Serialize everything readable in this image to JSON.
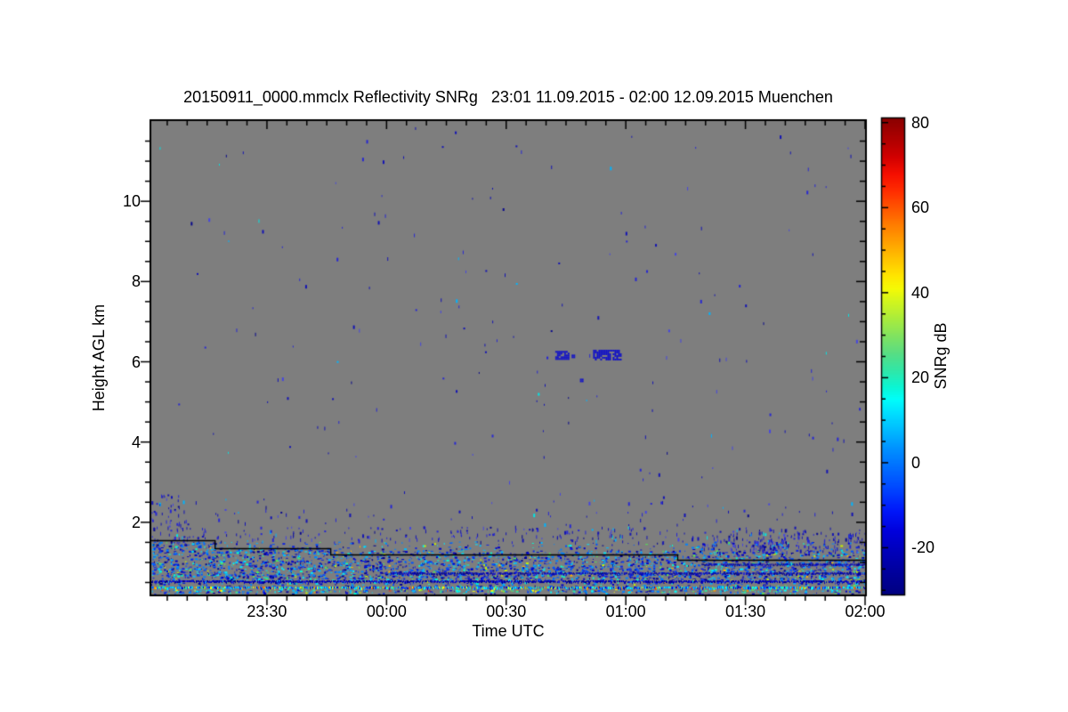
{
  "chart_data": {
    "type": "heatmap",
    "title": "20150911_0000.mmclx Reflectivity SNRg   23:01 11.09.2015 - 02:00 12.09.2015 Muenchen",
    "station": "Muenchen",
    "file": "20150911_0000.mmclx",
    "quantity": "Reflectivity SNRg",
    "time_span": "23:01 11.09.2015 - 02:00 12.09.2015",
    "xlabel": "Time UTC",
    "ylabel": "Height AGL km",
    "colorbar_label": "SNRg dB",
    "x_axis": {
      "start_label": "23:01",
      "end_label": "02:00",
      "duration_min": 179,
      "major_ticks": [
        {
          "label": "23:30",
          "min": 29
        },
        {
          "label": "00:00",
          "min": 59
        },
        {
          "label": "00:30",
          "min": 89
        },
        {
          "label": "01:00",
          "min": 119
        },
        {
          "label": "01:30",
          "min": 149
        },
        {
          "label": "02:00",
          "min": 179
        }
      ],
      "minor_step_min": 5,
      "first_minor_min": 4
    },
    "y_axis": {
      "min_km": 0.2,
      "max_km": 12.0,
      "major_ticks": [
        2,
        4,
        6,
        8,
        10
      ],
      "minor_step_km": 0.5
    },
    "colorbar": {
      "min": -31,
      "max": 81,
      "major_ticks": [
        -20,
        0,
        20,
        40,
        60,
        80
      ],
      "minor_step": 5,
      "stops": [
        [
          -31,
          "#000080"
        ],
        [
          -26,
          "#00009b"
        ],
        [
          -21,
          "#0000b9"
        ],
        [
          -16,
          "#0000dc"
        ],
        [
          -11,
          "#0019fa"
        ],
        [
          -6,
          "#0046ff"
        ],
        [
          -1,
          "#006eff"
        ],
        [
          4,
          "#0096ff"
        ],
        [
          8,
          "#00bdff"
        ],
        [
          12,
          "#00e1ff"
        ],
        [
          15,
          "#00fffa"
        ],
        [
          18,
          "#0cf5d2"
        ],
        [
          22,
          "#32e6a5"
        ],
        [
          26,
          "#5add82"
        ],
        [
          30,
          "#82e35f"
        ],
        [
          34,
          "#aaec3c"
        ],
        [
          38,
          "#d2f51e"
        ],
        [
          41,
          "#f5fa05"
        ],
        [
          44,
          "#ffe600"
        ],
        [
          48,
          "#ffc300"
        ],
        [
          52,
          "#ffa000"
        ],
        [
          56,
          "#ff7d00"
        ],
        [
          60,
          "#ff5500"
        ],
        [
          64,
          "#ff2d00"
        ],
        [
          68,
          "#f50f00"
        ],
        [
          72,
          "#d20000"
        ],
        [
          76,
          "#b00000"
        ],
        [
          81,
          "#8b0000"
        ]
      ]
    },
    "colors": {
      "no_signal_background": "#7e7e7e",
      "frame": "#000000",
      "page": "#ffffff",
      "step_line": "#000000",
      "cloud": "#1212c8"
    },
    "palettes": {
      "sparse": [
        [
          "#1414b4",
          0.4
        ],
        [
          "#2828d2",
          0.33
        ],
        [
          "#4646e1",
          0.12
        ],
        [
          "#0a0a8c",
          0.07
        ],
        [
          "#00b4ff",
          0.05
        ],
        [
          "#00e6e6",
          0.03
        ]
      ],
      "band": [
        [
          "#000091",
          0.09
        ],
        [
          "#0000c8",
          0.19
        ],
        [
          "#1023e1",
          0.17
        ],
        [
          "#0050ff",
          0.14
        ],
        [
          "#0082ff",
          0.12
        ],
        [
          "#00b9ff",
          0.1
        ],
        [
          "#00e6ff",
          0.08
        ],
        [
          "#00ffd0",
          0.05
        ],
        [
          "#55e655",
          0.03
        ],
        [
          "#c8f000",
          0.02
        ],
        [
          "#ffb400",
          0.01
        ]
      ],
      "band2": [
        [
          "#0000c8",
          0.1
        ],
        [
          "#0040ff",
          0.14
        ],
        [
          "#0080ff",
          0.13
        ],
        [
          "#00c0ff",
          0.14
        ],
        [
          "#00ffff",
          0.16
        ],
        [
          "#30e6a0",
          0.09
        ],
        [
          "#80e630",
          0.07
        ],
        [
          "#ffff00",
          0.06
        ],
        [
          "#ff9000",
          0.05
        ],
        [
          "#ff4000",
          0.02
        ],
        [
          "#101099",
          0.04
        ]
      ],
      "dark": [
        [
          "#000082",
          0.3
        ],
        [
          "#0000b4",
          0.4
        ],
        [
          "#0a14d2",
          0.2
        ],
        [
          "#2020e0",
          0.1
        ]
      ]
    },
    "seed": 7,
    "noise_regions": [
      {
        "t": [
          0,
          179
        ],
        "km": [
          2.6,
          11.93
        ],
        "density": 0.0013,
        "style": "dash",
        "palette": "sparse"
      },
      {
        "t": [
          0,
          179
        ],
        "km": [
          1.9,
          2.6
        ],
        "density": 0.008,
        "style": "dash",
        "palette": "sparse"
      },
      {
        "t": [
          0,
          179
        ],
        "km": [
          1.52,
          1.9
        ],
        "density": 0.05,
        "style": "dash",
        "palette": "sparse"
      },
      {
        "t": [
          138,
          179
        ],
        "km": [
          1.25,
          1.75
        ],
        "density": 0.08,
        "style": "dash",
        "palette": "sparse"
      },
      {
        "t": [
          150,
          160
        ],
        "km": [
          1.25,
          1.55
        ],
        "density": 0.25,
        "style": "dash",
        "palette": "sparse"
      },
      {
        "t": [
          0,
          8
        ],
        "km": [
          1.5,
          2.7
        ],
        "density": 0.06,
        "style": "dash",
        "palette": "sparse"
      },
      {
        "t": [
          0,
          16
        ],
        "km": [
          1.3,
          1.52
        ],
        "density": 0.3,
        "style": "blob",
        "palette": "band"
      },
      {
        "t": [
          16,
          45
        ],
        "km": [
          1.25,
          1.38
        ],
        "density": 0.25,
        "style": "blob",
        "palette": "band"
      },
      {
        "t": [
          0,
          179
        ],
        "km": [
          1.3,
          1.52
        ],
        "density": 0.08,
        "style": "blob",
        "palette": "band"
      },
      {
        "t": [
          0,
          179
        ],
        "km": [
          1.03,
          1.3
        ],
        "density": 0.28,
        "style": "blob",
        "palette": "band"
      },
      {
        "t": [
          0,
          179
        ],
        "km": [
          0.55,
          1.03
        ],
        "density": 0.38,
        "style": "blob",
        "palette": "band"
      },
      {
        "t": [
          0,
          179
        ],
        "km": [
          0.47,
          0.55
        ],
        "density": 0.22,
        "style": "blob",
        "palette": "band"
      },
      {
        "t": [
          0,
          179
        ],
        "km": [
          0.4,
          0.47
        ],
        "density": 0.16,
        "style": "blob",
        "palette": "band"
      },
      {
        "t": [
          0,
          179
        ],
        "km": [
          0.27,
          0.33
        ],
        "density": 0.5,
        "style": "blob",
        "palette": "band2"
      },
      {
        "t": [
          0,
          179
        ],
        "km": [
          0.2,
          0.26
        ],
        "density": 0.16,
        "style": "blob",
        "palette": "band"
      }
    ],
    "artifact_rows": [
      {
        "km": 0.95,
        "t": [
          138,
          179
        ],
        "palette": "dark",
        "coverage": 0.85
      },
      {
        "km": 0.73,
        "t": [
          60,
          179
        ],
        "palette": "dark",
        "coverage": 0.85
      },
      {
        "km": 0.53,
        "t": [
          0,
          179
        ],
        "palette": "dark",
        "coverage": 0.88
      },
      {
        "km": 0.375,
        "t": [
          0,
          179
        ],
        "palette": "band2",
        "coverage": 0.9
      }
    ],
    "step_line_segments": [
      {
        "t": [
          0,
          16
        ],
        "km": 1.55
      },
      {
        "t": [
          16,
          45
        ],
        "km": 1.36
      },
      {
        "t": [
          45,
          132
        ],
        "km": 1.2
      },
      {
        "t": [
          132,
          179
        ],
        "km": 1.06
      }
    ],
    "cloud_patches": [
      {
        "t": [
          101.3,
          104.5
        ],
        "km": [
          6.05,
          6.27
        ],
        "coverage": 0.7
      },
      {
        "t": [
          105.4,
          105.9
        ],
        "km": [
          6.1,
          6.18
        ],
        "coverage": 1.0
      },
      {
        "t": [
          110.8,
          117.5
        ],
        "km": [
          6.05,
          6.3
        ],
        "coverage": 0.75
      },
      {
        "t": [
          107.5,
          108.1
        ],
        "km": [
          5.5,
          5.58
        ],
        "coverage": 1.0
      }
    ]
  }
}
